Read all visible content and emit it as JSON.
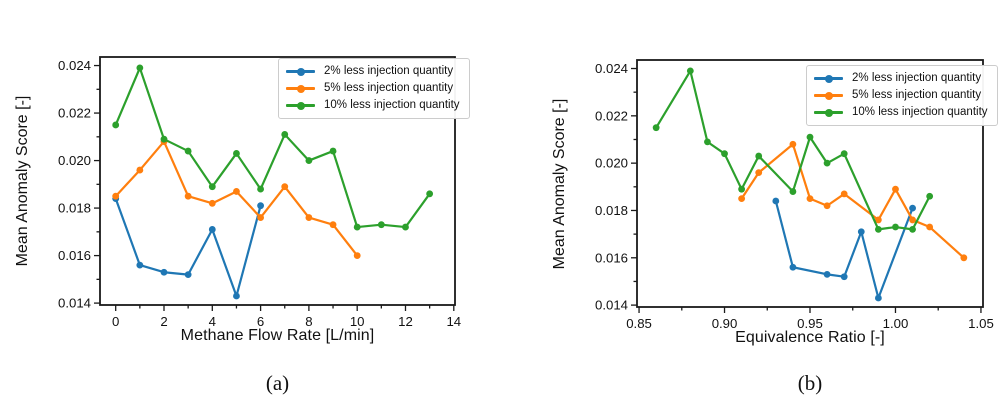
{
  "figure": {
    "background": "#ffffff",
    "frame_color": "#1a1a1a",
    "text_color": "#111111"
  },
  "chart_data": [
    {
      "type": "line",
      "caption": "(a)",
      "title": "",
      "xlabel": "Methane Flow Rate [L/min]",
      "ylabel": "Mean Anomaly Score [-]",
      "xlim": [
        -0.65,
        14.05
      ],
      "ylim": [
        0.01392,
        0.02436
      ],
      "x_ticks": [
        0,
        2,
        4,
        6,
        8,
        10,
        12,
        14
      ],
      "x_tick_labels": [
        "0",
        "2",
        "4",
        "6",
        "8",
        "10",
        "12",
        "14"
      ],
      "x_minor_ticks": [
        1,
        3,
        5,
        7,
        9,
        11,
        13
      ],
      "y_ticks": [
        0.014,
        0.016,
        0.018,
        0.02,
        0.022,
        0.024
      ],
      "y_tick_labels": [
        "0.014",
        "0.016",
        "0.018",
        "0.020",
        "0.022",
        "0.024"
      ],
      "y_minor_ticks": [
        0.015,
        0.017,
        0.019,
        0.021,
        0.023
      ],
      "grid": false,
      "legend_position": "upper right",
      "series": [
        {
          "name": "2% less injection quantity",
          "color": "#1f77b4",
          "marker": "circle",
          "x": [
            0,
            1,
            2,
            3,
            4,
            5,
            6
          ],
          "y": [
            0.0184,
            0.0156,
            0.0153,
            0.0152,
            0.0171,
            0.0143,
            0.0181
          ]
        },
        {
          "name": "5% less injection quantity",
          "color": "#ff7f0e",
          "marker": "circle",
          "x": [
            0,
            1,
            2,
            3,
            4,
            5,
            6,
            7,
            8,
            9,
            10
          ],
          "y": [
            0.0185,
            0.0196,
            0.0208,
            0.0185,
            0.0182,
            0.0187,
            0.0176,
            0.0189,
            0.0176,
            0.0173,
            0.016
          ]
        },
        {
          "name": "10% less injection quantity",
          "color": "#2ca02c",
          "marker": "circle",
          "x": [
            0,
            1,
            2,
            3,
            4,
            5,
            6,
            7,
            8,
            9,
            10,
            11,
            12,
            13
          ],
          "y": [
            0.0215,
            0.0239,
            0.0209,
            0.0204,
            0.0189,
            0.0203,
            0.0188,
            0.0211,
            0.02,
            0.0204,
            0.0172,
            0.0173,
            0.0172,
            0.0186
          ]
        }
      ]
    },
    {
      "type": "line",
      "caption": "(b)",
      "title": "",
      "xlabel": "Equivalence Ratio [-]",
      "ylabel": "Mean Anomaly Score [-]",
      "xlim": [
        0.8488,
        1.0512
      ],
      "ylim": [
        0.01392,
        0.02436
      ],
      "x_ticks": [
        0.85,
        0.9,
        0.95,
        1.0,
        1.05
      ],
      "x_tick_labels": [
        "0.85",
        "0.90",
        "0.95",
        "1.00",
        "1.05"
      ],
      "x_minor_ticks": [
        0.875,
        0.925,
        0.975,
        1.025
      ],
      "y_ticks": [
        0.014,
        0.016,
        0.018,
        0.02,
        0.022,
        0.024
      ],
      "y_tick_labels": [
        "0.014",
        "0.016",
        "0.018",
        "0.020",
        "0.022",
        "0.024"
      ],
      "y_minor_ticks": [
        0.015,
        0.017,
        0.019,
        0.021,
        0.023
      ],
      "grid": false,
      "legend_position": "upper right",
      "series": [
        {
          "name": "2% less injection quantity",
          "color": "#1f77b4",
          "marker": "circle",
          "x": [
            0.93,
            0.94,
            0.96,
            0.97,
            0.98,
            0.99,
            1.01
          ],
          "y": [
            0.0184,
            0.0156,
            0.0153,
            0.0152,
            0.0171,
            0.0143,
            0.0181
          ]
        },
        {
          "name": "5% less injection quantity",
          "color": "#ff7f0e",
          "marker": "circle",
          "x": [
            0.91,
            0.92,
            0.94,
            0.95,
            0.96,
            0.97,
            0.99,
            1.0,
            1.01,
            1.02,
            1.04
          ],
          "y": [
            0.0185,
            0.0196,
            0.0208,
            0.0185,
            0.0182,
            0.0187,
            0.0176,
            0.0189,
            0.0176,
            0.0173,
            0.016
          ]
        },
        {
          "name": "10% less injection quantity",
          "color": "#2ca02c",
          "marker": "circle",
          "x": [
            0.86,
            0.88,
            0.89,
            0.9,
            0.91,
            0.92,
            0.94,
            0.95,
            0.96,
            0.97,
            0.99,
            1.0,
            1.01,
            1.02
          ],
          "y": [
            0.0215,
            0.0239,
            0.0209,
            0.0204,
            0.0189,
            0.0203,
            0.0188,
            0.0211,
            0.02,
            0.0204,
            0.0172,
            0.0173,
            0.0172,
            0.0186
          ]
        }
      ]
    }
  ]
}
